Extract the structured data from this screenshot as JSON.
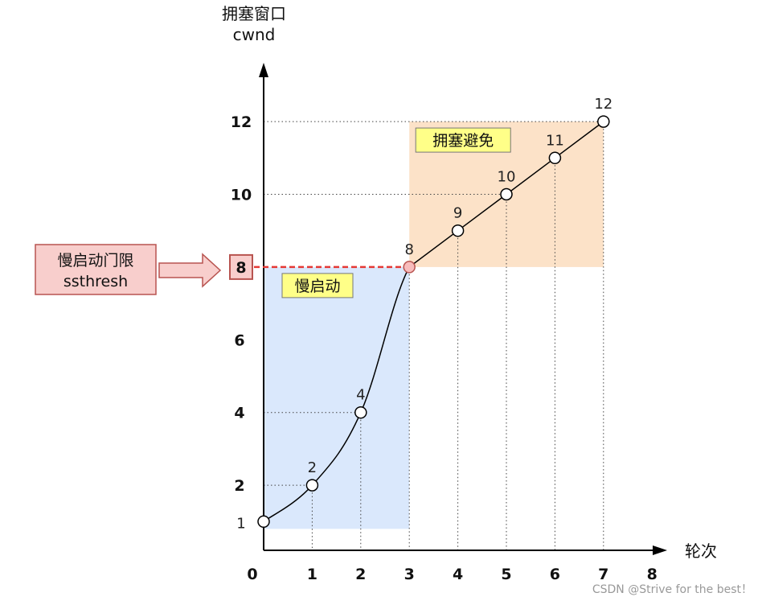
{
  "chart_data": {
    "type": "line",
    "title": "",
    "ylabel_line1": "拥塞窗口",
    "ylabel_line2": "cwnd",
    "xlabel": "轮次",
    "xlim": [
      0,
      8
    ],
    "ylim": [
      0,
      13
    ],
    "x_ticks": [
      "0",
      "1",
      "2",
      "3",
      "4",
      "5",
      "6",
      "7",
      "8"
    ],
    "y_ticks": [
      {
        "value": 1,
        "label": "1"
      },
      {
        "value": 2,
        "label": "2"
      },
      {
        "value": 4,
        "label": "4"
      },
      {
        "value": 6,
        "label": "6"
      },
      {
        "value": 8,
        "label": "8"
      },
      {
        "value": 10,
        "label": "10"
      },
      {
        "value": 12,
        "label": "12"
      }
    ],
    "points": [
      {
        "x": 0,
        "y": 1,
        "label": "1"
      },
      {
        "x": 1,
        "y": 2,
        "label": "2"
      },
      {
        "x": 2,
        "y": 4,
        "label": "4"
      },
      {
        "x": 3,
        "y": 8,
        "label": "8"
      },
      {
        "x": 4,
        "y": 9,
        "label": "9"
      },
      {
        "x": 5,
        "y": 10,
        "label": "10"
      },
      {
        "x": 6,
        "y": 11,
        "label": "11"
      },
      {
        "x": 7,
        "y": 12,
        "label": "12"
      }
    ],
    "ssthresh_value": 8,
    "ssthresh_label_line1": "慢启动门限",
    "ssthresh_label_line2": "ssthresh",
    "slow_start_region": {
      "label": "慢启动",
      "x_range": [
        0,
        3
      ],
      "y_range": [
        0.8,
        8
      ],
      "color": "#dae8fc"
    },
    "congestion_avoidance_region": {
      "label": "拥塞避免",
      "x_range": [
        3,
        7
      ],
      "y_range": [
        8,
        12
      ],
      "color": "#fce2c8"
    },
    "colors": {
      "axis": "#000000",
      "line": "#000000",
      "threshold_line": "#e53935",
      "threshold_point_fill": "#f8bcbc",
      "tag_fill": "#ffff88",
      "ssthresh_box_fill": "#f8cecc",
      "ssthresh_box_stroke": "#b85450"
    },
    "watermark": "CSDN @Strive for the best！"
  }
}
